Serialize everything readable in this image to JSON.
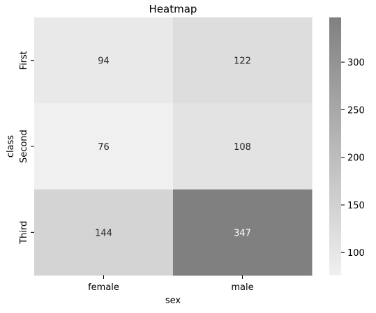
{
  "chart_data": {
    "type": "heatmap",
    "title": "Heatmap",
    "xlabel": "sex",
    "ylabel": "class",
    "x_categories": [
      "female",
      "male"
    ],
    "y_categories": [
      "First",
      "Second",
      "Third"
    ],
    "values": [
      [
        94,
        122
      ],
      [
        76,
        108
      ],
      [
        144,
        347
      ]
    ],
    "colorbar": {
      "min": 76,
      "max": 347,
      "ticks": [
        100,
        150,
        200,
        250,
        300
      ],
      "color_low": "#f0f0f0",
      "color_high": "#808080"
    },
    "annotation_colors": {
      "light_cell": "#262626",
      "dark_cell": "#ffffff"
    },
    "grid": false
  }
}
